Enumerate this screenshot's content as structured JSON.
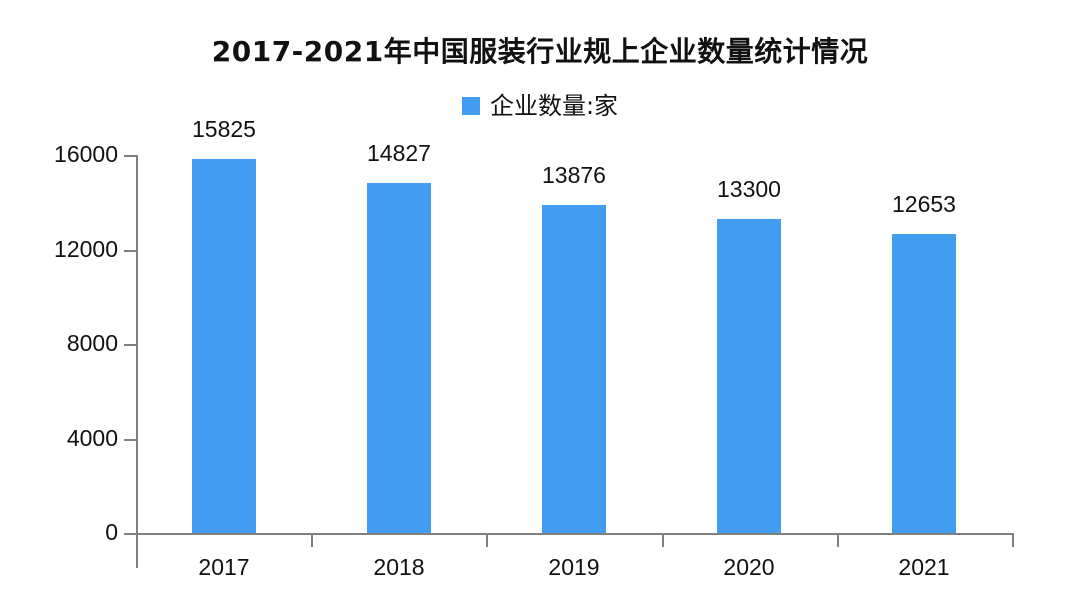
{
  "chart_data": {
    "type": "bar",
    "title": "2017-2021年中国服装行业规上企业数量统计情况",
    "categories": [
      "2017",
      "2018",
      "2019",
      "2020",
      "2021"
    ],
    "series": [
      {
        "name": "企业数量:家",
        "values": [
          15825,
          14827,
          13876,
          13300,
          12653
        ],
        "color": "#429DF0"
      }
    ],
    "values": [
      15825,
      14827,
      13876,
      13300,
      12653
    ],
    "data_labels": [
      "15825",
      "14827",
      "13876",
      "13300",
      "12653"
    ],
    "xlabel": "",
    "ylabel": "",
    "ylim": [
      0,
      16000
    ],
    "yticks": [
      0,
      4000,
      8000,
      12000,
      16000
    ],
    "ytick_labels": [
      "0",
      "4000",
      "8000",
      "12000",
      "16000"
    ],
    "legend": {
      "entries": [
        "企业数量:家"
      ],
      "position": "top"
    },
    "grid": false
  }
}
